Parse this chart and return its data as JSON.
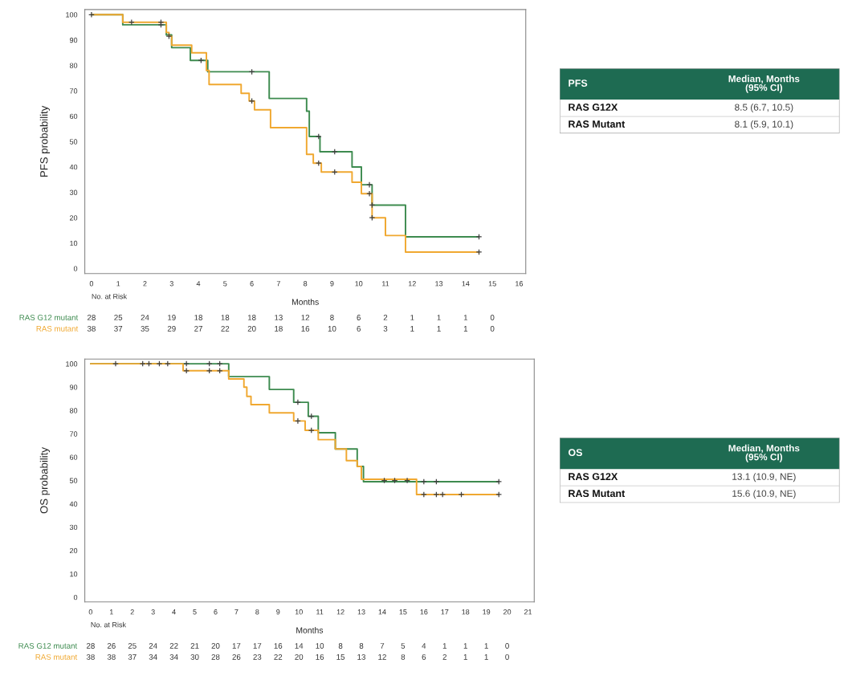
{
  "chart_data": [
    {
      "type": "step",
      "xlabel": "Months",
      "ylabel": "PFS probability",
      "xlim": [
        -0.25,
        16.25
      ],
      "ylim": [
        -2,
        102
      ],
      "xticks": [
        0,
        1,
        2,
        3,
        4,
        5,
        6,
        7,
        8,
        9,
        10,
        11,
        12,
        13,
        14,
        15,
        16
      ],
      "yticks": [
        0,
        10,
        20,
        30,
        40,
        50,
        60,
        70,
        80,
        90,
        100
      ],
      "annotations": [
        "No. at Risk",
        "28 25 24 19 18 18 18 13 12 8 6 2 1 1 1 0",
        "38 37 35 29 27 22 20 18 16 10 6 3 1 1 1 0"
      ],
      "series": [
        {
          "name": "RAS G12 mutant",
          "type": "step",
          "color": "#3d8b4f",
          "x": [
            0,
            1.17,
            2.8,
            3.0,
            3.7,
            4.35,
            6.65,
            8.05,
            8.15,
            8.55,
            9.75,
            10.1,
            10.5,
            11.75,
            14.5
          ],
          "values": [
            100,
            96,
            92,
            87,
            82,
            77.5,
            67,
            62,
            52,
            46,
            40,
            33,
            25,
            12.5,
            12.5
          ]
        },
        {
          "name": "RAS mutant",
          "type": "step",
          "color": "#f0a830",
          "x": [
            0,
            1.17,
            2.8,
            2.9,
            3.0,
            3.75,
            4.3,
            4.4,
            5.6,
            5.9,
            6.1,
            6.7,
            8.05,
            8.3,
            8.6,
            9.75,
            10.1,
            10.5,
            11.0,
            11.75,
            14.5
          ],
          "values": [
            100,
            97,
            93,
            91.5,
            88,
            85,
            78,
            72.5,
            69,
            66,
            62.5,
            55.5,
            45,
            41.5,
            38,
            34,
            29.5,
            20,
            13,
            6.5,
            6.5
          ]
        },
        {
          "type": "scatter",
          "marker": "cross",
          "color": "#404040",
          "x": [
            0,
            1.5,
            2.6,
            2.6,
            2.9,
            4.1,
            6.0,
            6.0,
            8.5,
            8.5,
            9.1,
            9.1,
            10.4,
            10.4,
            10.5,
            10.5,
            14.5,
            14.5
          ],
          "values": [
            100,
            97,
            97,
            96,
            91.5,
            82,
            77.5,
            66,
            52,
            41.5,
            46,
            38,
            33,
            29.5,
            25,
            20,
            12.5,
            6.5
          ]
        }
      ]
    },
    {
      "type": "other",
      "title": "PFS",
      "annotations": [
        "Median, Months\n(95% CI)",
        "RAS G12X",
        "8.5 (6.7, 10.5)",
        "RAS Mutant",
        "8.1 (5.9, 10.1)"
      ]
    },
    {
      "type": "step",
      "xlabel": "Months",
      "ylabel": "OS probability",
      "xlim": [
        -0.28,
        21.3
      ],
      "ylim": [
        -2,
        102
      ],
      "xticks": [
        0,
        1,
        2,
        3,
        4,
        5,
        6,
        7,
        8,
        9,
        10,
        11,
        12,
        13,
        14,
        15,
        16,
        17,
        18,
        19,
        20,
        21
      ],
      "yticks": [
        0,
        10,
        20,
        30,
        40,
        50,
        60,
        70,
        80,
        90,
        100
      ],
      "annotations": [
        "No. at Risk",
        "28 26 25 24 22 21 20 17 17 16 14 10 8 8 7 5 4 1 1 1 0",
        "38 38 37 34 34 30 28 26 23 22 20 16 15 13 12 8 6 2 1 1 0"
      ],
      "series": [
        {
          "name": "RAS G12 mutant",
          "type": "step",
          "color": "#3d8b4f",
          "x": [
            0,
            6.63,
            8.58,
            9.75,
            10.45,
            10.93,
            11.75,
            12.8,
            13.1,
            19.6
          ],
          "values": [
            100,
            94.5,
            89,
            83.5,
            77.5,
            70.5,
            63.5,
            56,
            49.5,
            49.5
          ]
        },
        {
          "name": "RAS mutant",
          "type": "step",
          "color": "#f0a830",
          "x": [
            0,
            4.44,
            6.63,
            7.36,
            7.5,
            7.7,
            8.58,
            9.75,
            10.3,
            10.93,
            11.75,
            12.28,
            12.8,
            13.0,
            15.65,
            19.6
          ],
          "values": [
            100,
            97,
            93.5,
            90,
            86,
            82.5,
            79,
            75.5,
            71.5,
            67.5,
            63.5,
            58.5,
            56,
            50.5,
            44,
            44
          ]
        },
        {
          "type": "scatter",
          "marker": "cross",
          "color": "#404040",
          "x": [
            1.2,
            2.5,
            2.8,
            3.3,
            3.7,
            4.6,
            5.7,
            6.2,
            9.95,
            10.6,
            14.1,
            14.6,
            15.2,
            16.0,
            16.6,
            19.6,
            4.6,
            5.7,
            6.2,
            9.95,
            10.6,
            16.0,
            16.6,
            16.9,
            17.8,
            19.6
          ],
          "values": [
            100,
            100,
            100,
            100,
            100,
            100,
            100,
            100,
            83.5,
            77.5,
            50,
            50,
            50,
            49.5,
            49.5,
            49.5,
            97,
            97,
            97,
            75.5,
            71.5,
            44,
            44,
            44,
            44,
            44
          ]
        }
      ]
    },
    {
      "type": "other",
      "title": "OS",
      "annotations": [
        "Median, Months\n(95% CI)",
        "RAS G12X",
        "13.1 (10.9, NE)",
        "RAS Mutant",
        "15.6 (10.9, NE)"
      ]
    }
  ]
}
